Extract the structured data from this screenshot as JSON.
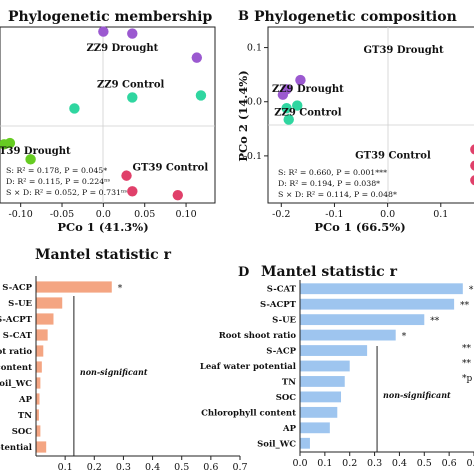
{
  "chart_data": [
    {
      "id": "A",
      "type": "scatter",
      "panel_label": "",
      "title": "Phylogenetic membership",
      "xlabel": "PCo 1 (41.3%)",
      "ylabel": "",
      "xlim": [
        -0.125,
        0.135
      ],
      "ylim": [
        -0.135,
        0.135
      ],
      "xticks": [
        -0.1,
        -0.05,
        0.0,
        0.05,
        0.1
      ],
      "xtick_labels": [
        "-0.10",
        "-0.05",
        "0.0",
        "0.05",
        "0.10"
      ],
      "grid": false,
      "series": [
        {
          "color": "#9b59d0",
          "points": [
            [
              0.0,
              0.128
            ],
            [
              0.035,
              0.125
            ],
            [
              0.113,
              0.088
            ]
          ]
        },
        {
          "color": "#2fd6a0",
          "points": [
            [
              -0.035,
              0.01
            ],
            [
              0.035,
              0.027
            ],
            [
              0.118,
              0.03
            ]
          ]
        },
        {
          "color": "#66cc22",
          "points": [
            [
              -0.12,
              -0.045
            ],
            [
              -0.113,
              -0.043
            ],
            [
              -0.088,
              -0.068
            ]
          ]
        },
        {
          "color": "#e0406a",
          "points": [
            [
              0.028,
              -0.093
            ],
            [
              0.035,
              -0.117
            ],
            [
              0.09,
              -0.123
            ]
          ]
        }
      ],
      "group_labels": [
        {
          "text": "ZZ9 Drought",
          "x": 0.023,
          "y": 0.098
        },
        {
          "text": "ZZ9 Control",
          "x": 0.033,
          "y": 0.042
        },
        {
          "text": "GT39 Drought",
          "x": -0.088,
          "y": -0.06
        },
        {
          "text": "GT39 Control",
          "x": 0.081,
          "y": -0.085
        }
      ],
      "stats": [
        "S: R² = 0.178, P = 0.045*",
        "D: R² = 0.115, P = 0.224ⁿˢ",
        "S × D: R² = 0.052, P = 0.731ⁿˢ"
      ]
    },
    {
      "id": "B",
      "type": "scatter",
      "panel_label": "B",
      "title": "Phylogenetic composition",
      "xlabel": "PCo 1 (66.5%)",
      "ylabel": "PCo 2 (14.4%)",
      "xlim": [
        -0.225,
        0.17
      ],
      "ylim": [
        -0.187,
        0.138
      ],
      "xticks": [
        -0.2,
        -0.1,
        0.0,
        0.1
      ],
      "xtick_labels": [
        "-0.2",
        "-0.1",
        "0.0",
        "0.1"
      ],
      "yticks": [
        -0.1,
        0.0,
        0.1
      ],
      "ytick_labels": [
        "-0.1",
        "0.0",
        "0.1"
      ],
      "grid": false,
      "series": [
        {
          "color": "#9b59d0",
          "points": [
            [
              -0.19,
              0.023
            ],
            [
              -0.197,
              0.013
            ],
            [
              -0.164,
              0.04
            ]
          ]
        },
        {
          "color": "#2fd6a0",
          "points": [
            [
              -0.19,
              -0.012
            ],
            [
              -0.186,
              -0.033
            ],
            [
              -0.17,
              -0.007
            ]
          ]
        },
        {
          "color": "#e0406a",
          "points": [
            [
              0.165,
              -0.088
            ],
            [
              0.165,
              -0.118
            ],
            [
              0.165,
              -0.145
            ]
          ]
        }
      ],
      "group_labels": [
        {
          "text": "GT39 Drought",
          "x": 0.03,
          "y": 0.09
        },
        {
          "text": "ZZ9 Drought",
          "x": -0.15,
          "y": 0.018
        },
        {
          "text": "ZZ9 Control",
          "x": -0.15,
          "y": -0.025
        },
        {
          "text": "GT39 Control",
          "x": 0.01,
          "y": -0.105
        }
      ],
      "stats": [
        "S: R² = 0.660, P = 0.001***",
        "D: R² = 0.194, P = 0.038*",
        "S × D: R² = 0.114, P = 0.048*"
      ]
    },
    {
      "id": "C",
      "type": "bar",
      "orientation": "horizontal",
      "panel_label": "",
      "title": "Mantel statistic r",
      "xlim": [
        0,
        0.7
      ],
      "xticks": [
        0.1,
        0.2,
        0.3,
        0.4,
        0.5,
        0.6,
        0.7
      ],
      "categories": [
        "S-ACP",
        "S-UE",
        "S-ACPT",
        "S-CAT",
        "hoot ratio",
        "ll content",
        "Soil_WC",
        "AP",
        "TN",
        "SOC",
        "potential"
      ],
      "values": [
        0.26,
        0.09,
        0.06,
        0.04,
        0.025,
        0.02,
        0.015,
        0.012,
        0.01,
        0.015,
        0.035
      ],
      "significance": [
        "*",
        "",
        "",
        "",
        "",
        "",
        "",
        "",
        "",
        "",
        ""
      ],
      "color": "#f4a582",
      "threshold": 0.13,
      "threshold_label": "non-significant"
    },
    {
      "id": "D",
      "type": "bar",
      "orientation": "horizontal",
      "panel_label": "D",
      "title": "Mantel statistic r",
      "xlim": [
        0,
        0.7
      ],
      "xticks": [
        0.0,
        0.1,
        0.2,
        0.3,
        0.4,
        0.5,
        0.6,
        0.7
      ],
      "categories": [
        "S-CAT",
        "S-ACPT",
        "S-UE",
        "Root shoot ratio",
        "S-ACP",
        "Leaf water potential",
        "TN",
        "SOC",
        "Chlorophyll content",
        "AP",
        "Soil_WC"
      ],
      "values": [
        0.655,
        0.62,
        0.5,
        0.385,
        0.27,
        0.2,
        0.18,
        0.165,
        0.15,
        0.12,
        0.04
      ],
      "significance": [
        "*",
        "**",
        "**",
        "*",
        "",
        "",
        "",
        "",
        "",
        "",
        ""
      ],
      "color": "#9ec5ef",
      "threshold": 0.31,
      "threshold_label": "non-significant",
      "side_marks": [
        "**",
        "**",
        "*p"
      ]
    }
  ]
}
